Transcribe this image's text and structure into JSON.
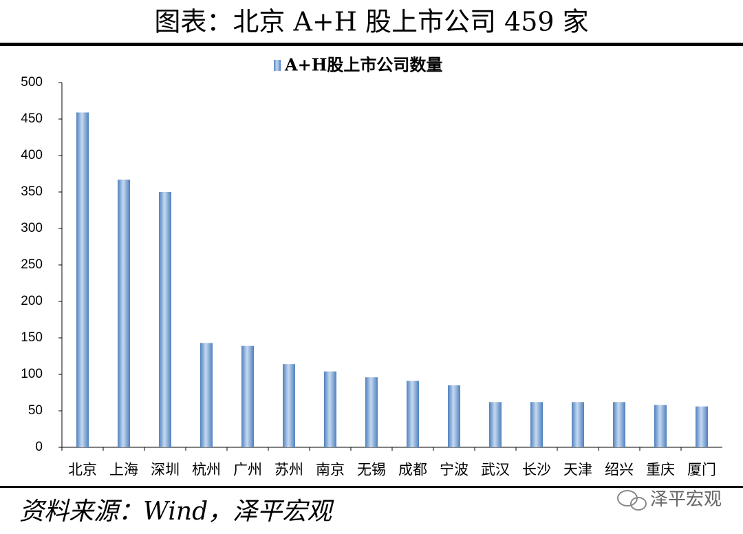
{
  "chart_data": {
    "type": "bar",
    "title": "图表：北京 A+H 股上市公司 459 家",
    "categories": [
      "北京",
      "上海",
      "深圳",
      "杭州",
      "广州",
      "苏州",
      "南京",
      "无锡",
      "成都",
      "宁波",
      "武汉",
      "长沙",
      "天津",
      "绍兴",
      "重庆",
      "厦门"
    ],
    "series": [
      {
        "name": "A+H股上市公司数量",
        "color": "#4f81bd",
        "values": [
          459,
          367,
          350,
          143,
          139,
          114,
          104,
          96,
          91,
          85,
          62,
          62,
          62,
          62,
          58,
          56
        ]
      }
    ],
    "ylim": [
      0,
      500
    ],
    "yticks": [
      0,
      50,
      100,
      150,
      200,
      250,
      300,
      350,
      400,
      450,
      500
    ],
    "grid": false,
    "legend": "top",
    "source": "资料来源：Wind，泽平宏观",
    "watermark": "泽平宏观"
  }
}
